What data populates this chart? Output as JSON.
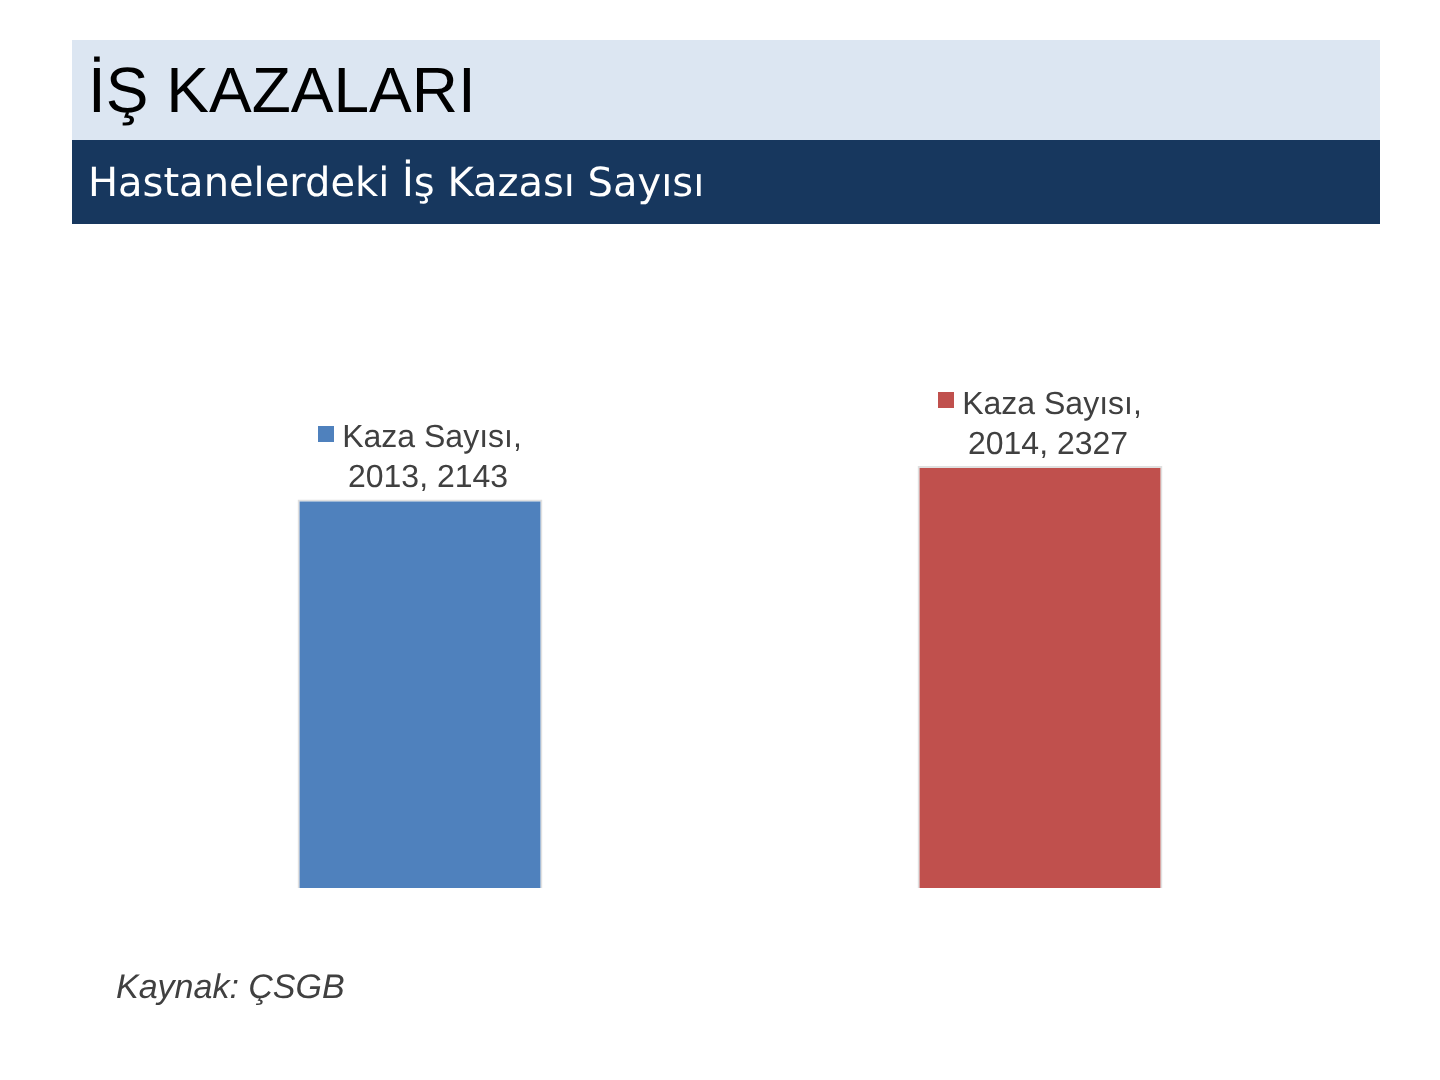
{
  "chart_data": {
    "type": "bar",
    "title": "İŞ KAZALARI",
    "subtitle": "Hastanelerdeki İş Kazası Sayısı",
    "annotations": [
      "Kaynak: ÇSGB"
    ],
    "categories": [
      null,
      null
    ],
    "series": [
      {
        "colors": [
          "#4f81bd",
          "#c0504d"
        ],
        "values": [
          2143,
          2327
        ],
        "value_labels": [
          "Kaza Sayısı, 2013, 2143",
          "Kaza Sayısı, 2014, 2327"
        ]
      }
    ],
    "tick_labels": false
  }
}
